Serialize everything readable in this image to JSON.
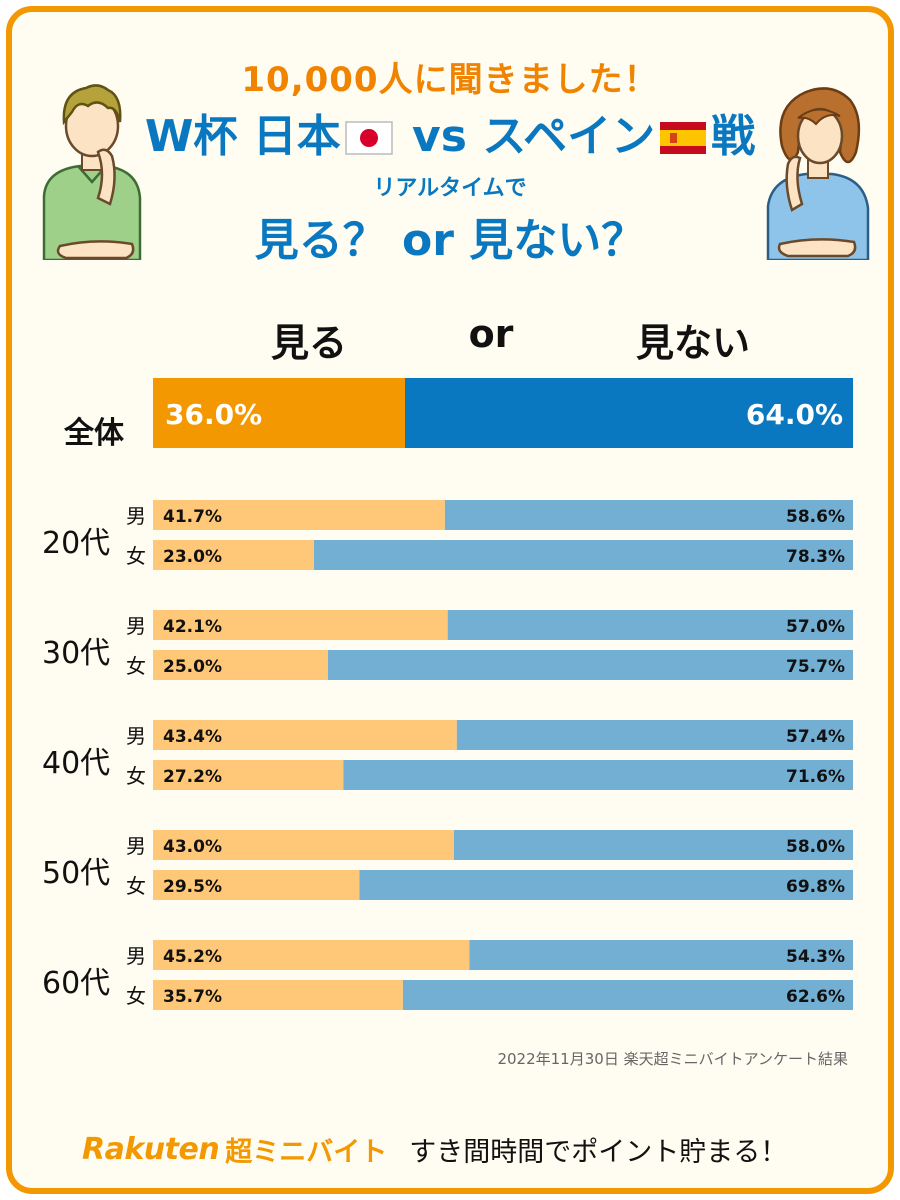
{
  "heading": {
    "line1": "10,000人に聞きました！",
    "line2_prefix": "W杯 日本",
    "line2_mid": " vs スペイン",
    "line2_suffix": "戦",
    "line3": "リアルタイムで",
    "line4": "見る？ or 見ない？"
  },
  "columns": {
    "watch": "見る",
    "or": "or",
    "not_watch": "見ない"
  },
  "colors": {
    "watch_total": "#f39800",
    "not_watch_total": "#0a78c0",
    "watch_group": "#ffc878",
    "not_watch_group": "#73afd2",
    "border": "#f39800"
  },
  "chart_data": {
    "type": "bar",
    "orientation": "horizontal-stacked",
    "total": {
      "label": "全体",
      "watch": 36.0,
      "not_watch": 64.0
    },
    "groups": [
      {
        "age": "20代",
        "rows": [
          {
            "sex": "男",
            "watch": 41.7,
            "not_watch": 58.6
          },
          {
            "sex": "女",
            "watch": 23.0,
            "not_watch": 78.3
          }
        ]
      },
      {
        "age": "30代",
        "rows": [
          {
            "sex": "男",
            "watch": 42.1,
            "not_watch": 57.0
          },
          {
            "sex": "女",
            "watch": 25.0,
            "not_watch": 75.7
          }
        ]
      },
      {
        "age": "40代",
        "rows": [
          {
            "sex": "男",
            "watch": 43.4,
            "not_watch": 57.4
          },
          {
            "sex": "女",
            "watch": 27.2,
            "not_watch": 71.6
          }
        ]
      },
      {
        "age": "50代",
        "rows": [
          {
            "sex": "男",
            "watch": 43.0,
            "not_watch": 58.0
          },
          {
            "sex": "女",
            "watch": 29.5,
            "not_watch": 69.8
          }
        ]
      },
      {
        "age": "60代",
        "rows": [
          {
            "sex": "男",
            "watch": 45.2,
            "not_watch": 54.3
          },
          {
            "sex": "女",
            "watch": 35.7,
            "not_watch": 62.6
          }
        ]
      }
    ],
    "unit": "%"
  },
  "source": "2022年11月30日 楽天超ミニバイトアンケート結果",
  "footer": {
    "brand": "Rakuten",
    "brand_sub": "超ミニバイト",
    "tagline": "すき間時間でポイント貯まる！"
  },
  "icons": [
    "japan-flag-icon",
    "spain-flag-icon",
    "thinking-man-illustration",
    "thinking-woman-illustration"
  ]
}
